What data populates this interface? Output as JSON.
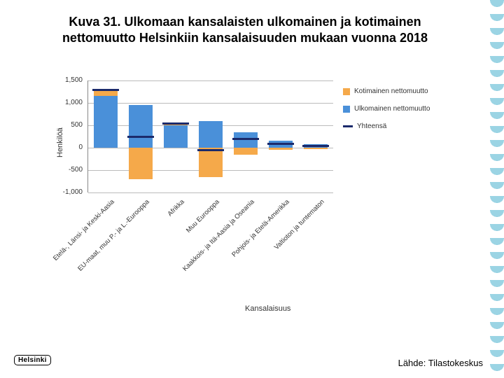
{
  "title": "Kuva 31. Ulkomaan kansalaisten ulkomainen ja kotimainen nettomuutto Helsinkiin kansalaisuuden mukaan vuonna 2018",
  "logo": "Helsinki",
  "source": "Lähde: Tilastokeskus",
  "chart": {
    "type": "bar",
    "y_title": "Henkilöä",
    "x_title": "Kansalaisuus",
    "ylim": [
      -1000,
      1500
    ],
    "ytick_step": 500,
    "yticks": [
      "-1,000",
      "-500",
      "0",
      "500",
      "1,000",
      "1,500"
    ],
    "grid_color": "#bbbbbb",
    "background": "#ffffff",
    "colors": {
      "kotimainen": "#f5a94a",
      "ulkomainen": "#4a90d9",
      "yhteensa": "#1b2a6b"
    },
    "legend": {
      "kotimainen": "Kotimainen nettomuutto",
      "ulkomainen": "Ulkomainen nettomuutto",
      "yhteensa": "Yhteensä"
    },
    "categories": [
      "Etelä-, Länsi- ja Keski-Aasia",
      "EU-maat, muu P.- ja L.-Eurooppa",
      "Afrikka",
      "Muu Eurooppa",
      "Kaakkois- ja Itä-Aasia ja Oseania",
      "Pohjois- ja Etelä-Amerikka",
      "Valtioton ja tuntematon"
    ],
    "series": {
      "kotimainen": [
        150,
        -700,
        50,
        -650,
        -150,
        -50,
        -30
      ],
      "ulkomainen": [
        1150,
        950,
        500,
        600,
        350,
        150,
        80
      ],
      "yhteensa": [
        1300,
        250,
        550,
        -50,
        200,
        100,
        50
      ]
    }
  }
}
